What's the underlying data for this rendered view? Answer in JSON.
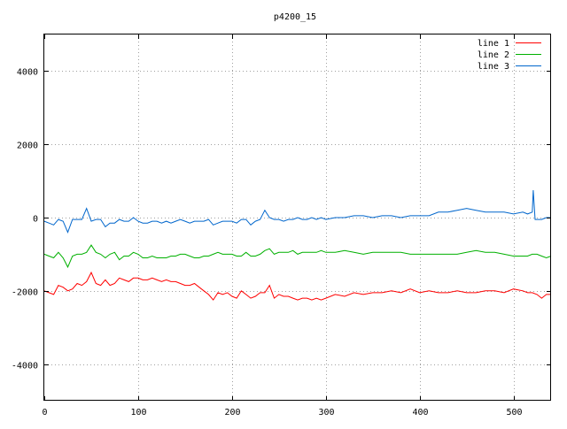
{
  "chart_data": {
    "type": "line",
    "title": "p4200_15",
    "xlabel": "",
    "ylabel": "",
    "xlim": [
      0,
      540
    ],
    "ylim": [
      -5000,
      5000
    ],
    "x_ticks": [
      0,
      100,
      200,
      300,
      400,
      500
    ],
    "y_ticks": [
      -4000,
      -2000,
      0,
      2000,
      4000
    ],
    "grid": true,
    "legend_position": "top-right",
    "series": [
      {
        "name": "line 1",
        "color": "#ff0000",
        "x": [
          0,
          5,
          10,
          15,
          20,
          25,
          30,
          35,
          40,
          45,
          50,
          55,
          60,
          65,
          70,
          75,
          80,
          85,
          90,
          95,
          100,
          105,
          110,
          115,
          120,
          125,
          130,
          135,
          140,
          145,
          150,
          155,
          160,
          165,
          170,
          175,
          180,
          185,
          190,
          195,
          200,
          205,
          210,
          215,
          220,
          225,
          230,
          235,
          240,
          245,
          250,
          255,
          260,
          265,
          270,
          275,
          280,
          285,
          290,
          295,
          300,
          310,
          320,
          330,
          340,
          350,
          360,
          370,
          380,
          390,
          400,
          410,
          420,
          430,
          440,
          450,
          460,
          470,
          480,
          490,
          500,
          510,
          515,
          520,
          525,
          530,
          535,
          540
        ],
        "y": [
          -2000,
          -2050,
          -2100,
          -1850,
          -1900,
          -2000,
          -1950,
          -1800,
          -1850,
          -1750,
          -1500,
          -1800,
          -1850,
          -1700,
          -1850,
          -1800,
          -1650,
          -1700,
          -1750,
          -1650,
          -1650,
          -1700,
          -1700,
          -1650,
          -1700,
          -1750,
          -1700,
          -1750,
          -1750,
          -1800,
          -1850,
          -1850,
          -1800,
          -1900,
          -2000,
          -2100,
          -2250,
          -2050,
          -2100,
          -2050,
          -2150,
          -2200,
          -2000,
          -2100,
          -2200,
          -2150,
          -2050,
          -2050,
          -1850,
          -2200,
          -2100,
          -2150,
          -2150,
          -2200,
          -2250,
          -2200,
          -2200,
          -2250,
          -2200,
          -2250,
          -2200,
          -2100,
          -2150,
          -2050,
          -2100,
          -2050,
          -2050,
          -2000,
          -2050,
          -1950,
          -2050,
          -2000,
          -2050,
          -2050,
          -2000,
          -2050,
          -2050,
          -2000,
          -2000,
          -2050,
          -1950,
          -2000,
          -2050,
          -2050,
          -2100,
          -2200,
          -2100,
          -2100
        ]
      },
      {
        "name": "line 2",
        "color": "#00b000",
        "x": [
          0,
          5,
          10,
          15,
          20,
          25,
          30,
          35,
          40,
          45,
          50,
          55,
          60,
          65,
          70,
          75,
          80,
          85,
          90,
          95,
          100,
          105,
          110,
          115,
          120,
          125,
          130,
          135,
          140,
          145,
          150,
          155,
          160,
          165,
          170,
          175,
          180,
          185,
          190,
          195,
          200,
          205,
          210,
          215,
          220,
          225,
          230,
          235,
          240,
          245,
          250,
          255,
          260,
          265,
          270,
          275,
          280,
          285,
          290,
          295,
          300,
          310,
          320,
          330,
          340,
          350,
          360,
          370,
          380,
          390,
          400,
          410,
          420,
          430,
          440,
          450,
          460,
          470,
          480,
          490,
          500,
          510,
          515,
          520,
          525,
          530,
          535,
          540
        ],
        "y": [
          -1000,
          -1050,
          -1100,
          -950,
          -1100,
          -1350,
          -1050,
          -1000,
          -1000,
          -950,
          -750,
          -950,
          -1000,
          -1100,
          -1000,
          -950,
          -1150,
          -1050,
          -1050,
          -950,
          -1000,
          -1100,
          -1100,
          -1050,
          -1100,
          -1100,
          -1100,
          -1050,
          -1050,
          -1000,
          -1000,
          -1050,
          -1100,
          -1100,
          -1050,
          -1050,
          -1000,
          -950,
          -1000,
          -1000,
          -1000,
          -1050,
          -1050,
          -950,
          -1050,
          -1050,
          -1000,
          -900,
          -850,
          -1000,
          -950,
          -950,
          -950,
          -900,
          -1000,
          -950,
          -950,
          -950,
          -950,
          -900,
          -950,
          -950,
          -900,
          -950,
          -1000,
          -950,
          -950,
          -950,
          -950,
          -1000,
          -1000,
          -1000,
          -1000,
          -1000,
          -1000,
          -950,
          -900,
          -950,
          -950,
          -1000,
          -1050,
          -1050,
          -1050,
          -1000,
          -1000,
          -1050,
          -1100,
          -1050
        ]
      },
      {
        "name": "line 3",
        "color": "#0066cc",
        "x": [
          0,
          5,
          10,
          15,
          20,
          25,
          30,
          35,
          40,
          45,
          50,
          55,
          60,
          65,
          70,
          75,
          80,
          85,
          90,
          95,
          100,
          105,
          110,
          115,
          120,
          125,
          130,
          135,
          140,
          145,
          150,
          155,
          160,
          165,
          170,
          175,
          180,
          185,
          190,
          195,
          200,
          205,
          210,
          215,
          220,
          225,
          230,
          235,
          240,
          245,
          250,
          255,
          260,
          265,
          270,
          275,
          280,
          285,
          290,
          295,
          300,
          310,
          320,
          330,
          340,
          350,
          360,
          370,
          380,
          390,
          400,
          410,
          420,
          430,
          440,
          450,
          460,
          470,
          480,
          490,
          500,
          510,
          515,
          520,
          521,
          523,
          525,
          530,
          535,
          540
        ],
        "y": [
          -100,
          -150,
          -200,
          -50,
          -100,
          -400,
          -50,
          -50,
          -50,
          250,
          -100,
          -50,
          -50,
          -250,
          -150,
          -150,
          -50,
          -100,
          -100,
          0,
          -100,
          -150,
          -150,
          -100,
          -100,
          -150,
          -100,
          -150,
          -100,
          -50,
          -100,
          -150,
          -100,
          -100,
          -100,
          -50,
          -200,
          -150,
          -100,
          -100,
          -100,
          -150,
          -50,
          -50,
          -200,
          -100,
          -50,
          200,
          0,
          -50,
          -50,
          -100,
          -50,
          -50,
          0,
          -50,
          -50,
          0,
          -50,
          0,
          -50,
          0,
          0,
          50,
          50,
          0,
          50,
          50,
          0,
          50,
          50,
          50,
          150,
          150,
          200,
          250,
          200,
          150,
          150,
          150,
          100,
          150,
          100,
          150,
          750,
          -50,
          -50,
          -50,
          0,
          0
        ]
      }
    ]
  }
}
